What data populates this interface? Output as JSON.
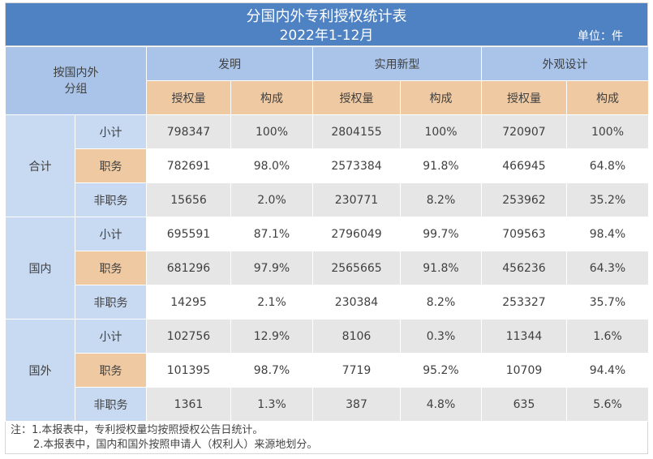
{
  "title": "分国内外专利授权统计表",
  "subtitle": "2022年1-12月",
  "unit": "单位：件",
  "corner_label": "按国内外分组",
  "categories": [
    "发明",
    "实用新型",
    "外观设计"
  ],
  "sub_headers": {
    "count": "授权量",
    "share": "构成"
  },
  "groups": [
    {
      "name": "合计",
      "rows": [
        {
          "label": "小计",
          "values": [
            "798347",
            "100%",
            "2804155",
            "100%",
            "720907",
            "100%"
          ]
        },
        {
          "label": "职务",
          "values": [
            "782691",
            "98.0%",
            "2573384",
            "91.8%",
            "466945",
            "64.8%"
          ]
        },
        {
          "label": "非职务",
          "values": [
            "15656",
            "2.0%",
            "230771",
            "8.2%",
            "253962",
            "35.2%"
          ]
        }
      ]
    },
    {
      "name": "国内",
      "rows": [
        {
          "label": "小计",
          "values": [
            "695591",
            "87.1%",
            "2796049",
            "99.7%",
            "709563",
            "98.4%"
          ]
        },
        {
          "label": "职务",
          "values": [
            "681296",
            "97.9%",
            "2565665",
            "91.8%",
            "456236",
            "64.3%"
          ]
        },
        {
          "label": "非职务",
          "values": [
            "14295",
            "2.1%",
            "230384",
            "8.2%",
            "253327",
            "35.7%"
          ]
        }
      ]
    },
    {
      "name": "国外",
      "rows": [
        {
          "label": "小计",
          "values": [
            "102756",
            "12.9%",
            "8106",
            "0.3%",
            "11344",
            "1.6%"
          ]
        },
        {
          "label": "职务",
          "values": [
            "101395",
            "98.7%",
            "7719",
            "95.2%",
            "10709",
            "94.4%"
          ]
        },
        {
          "label": "非职务",
          "values": [
            "1361",
            "1.3%",
            "387",
            "4.8%",
            "635",
            "5.6%"
          ]
        }
      ]
    }
  ],
  "notes": [
    "注：1.本报表中，专利授权量均按照授权公告日统计。",
    "2.本报表中，国内和国外按照申请人（权利人）来源地划分。"
  ]
}
